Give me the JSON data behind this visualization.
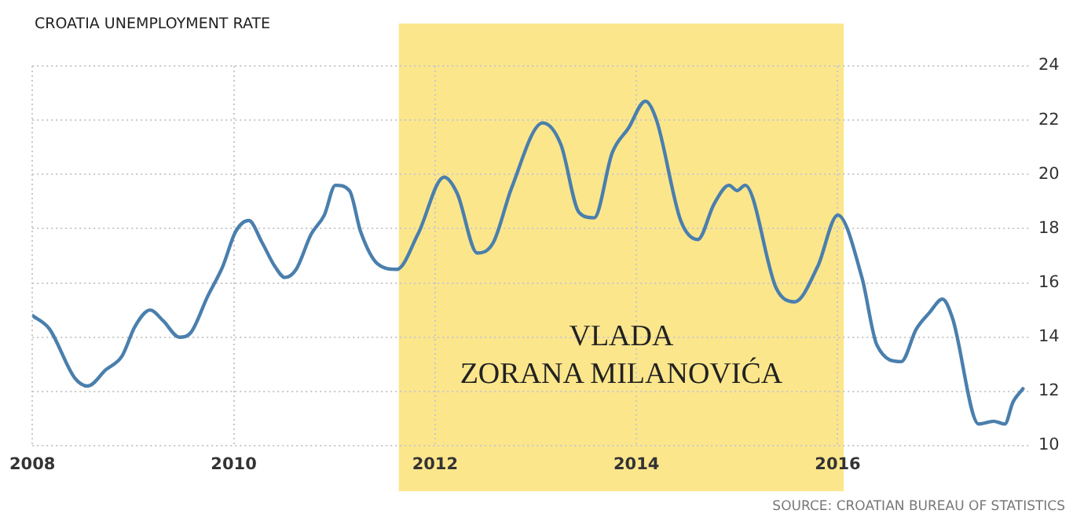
{
  "chart_data": {
    "type": "line",
    "title": "CROATIA UNEMPLOYMENT RATE",
    "annotations": [
      "SOURCE: CROATIAN BUREAU OF STATISTICS"
    ],
    "x": [
      2008.0,
      2008.17,
      2008.42,
      2008.55,
      2008.73,
      2008.89,
      2009.02,
      2009.17,
      2009.3,
      2009.46,
      2009.58,
      2009.74,
      2009.89,
      2010.02,
      2010.15,
      2010.28,
      2010.41,
      2010.51,
      2010.62,
      2010.77,
      2010.9,
      2011.01,
      2011.15,
      2011.26,
      2011.43,
      2011.62,
      2011.83,
      2012.09,
      2012.22,
      2012.42,
      2012.58,
      2012.76,
      2013.07,
      2013.25,
      2013.43,
      2013.58,
      2013.76,
      2013.92,
      2014.09,
      2014.2,
      2014.44,
      2014.61,
      2014.77,
      2014.92,
      2015.0,
      2015.08,
      2015.39,
      2015.57,
      2015.8,
      2016.0,
      2016.24,
      2016.39,
      2016.63,
      2016.78,
      2016.91,
      2017.04,
      2017.14,
      2017.4,
      2017.55,
      2017.66,
      2017.74,
      2017.84
    ],
    "series": [
      {
        "color": "#4a7fad",
        "values": [
          14.8,
          14.3,
          12.5,
          12.2,
          12.8,
          13.3,
          14.4,
          15.0,
          14.6,
          14.0,
          14.2,
          15.5,
          16.6,
          17.9,
          18.3,
          17.5,
          16.6,
          16.2,
          16.5,
          17.8,
          18.5,
          19.6,
          19.4,
          17.9,
          16.7,
          16.5,
          17.8,
          19.9,
          19.3,
          17.1,
          17.5,
          19.5,
          21.9,
          21.1,
          18.6,
          18.4,
          20.8,
          21.7,
          22.7,
          22.0,
          18.3,
          17.6,
          18.9,
          19.6,
          19.4,
          19.6,
          15.8,
          15.3,
          16.6,
          18.5,
          16.2,
          13.7,
          13.1,
          14.3,
          14.9,
          15.4,
          14.7,
          10.8,
          10.9,
          10.8,
          11.6,
          12.1
        ]
      }
    ],
    "xlim": [
      2008,
      2017.9
    ],
    "xticks": [
      2008,
      2010,
      2012,
      2014,
      2016
    ],
    "ylim": [
      10,
      24
    ],
    "yticks": [
      10,
      12,
      14,
      16,
      18,
      20,
      22,
      24
    ],
    "bands": [
      {
        "axis": "x",
        "from": 2011.64,
        "to": 2016.06,
        "label": "VLADA\nZORANA MILANOVIĆA",
        "color": "#fce68c"
      }
    ],
    "grid": true,
    "legend": false,
    "marker": "none",
    "line_style": "solid"
  }
}
